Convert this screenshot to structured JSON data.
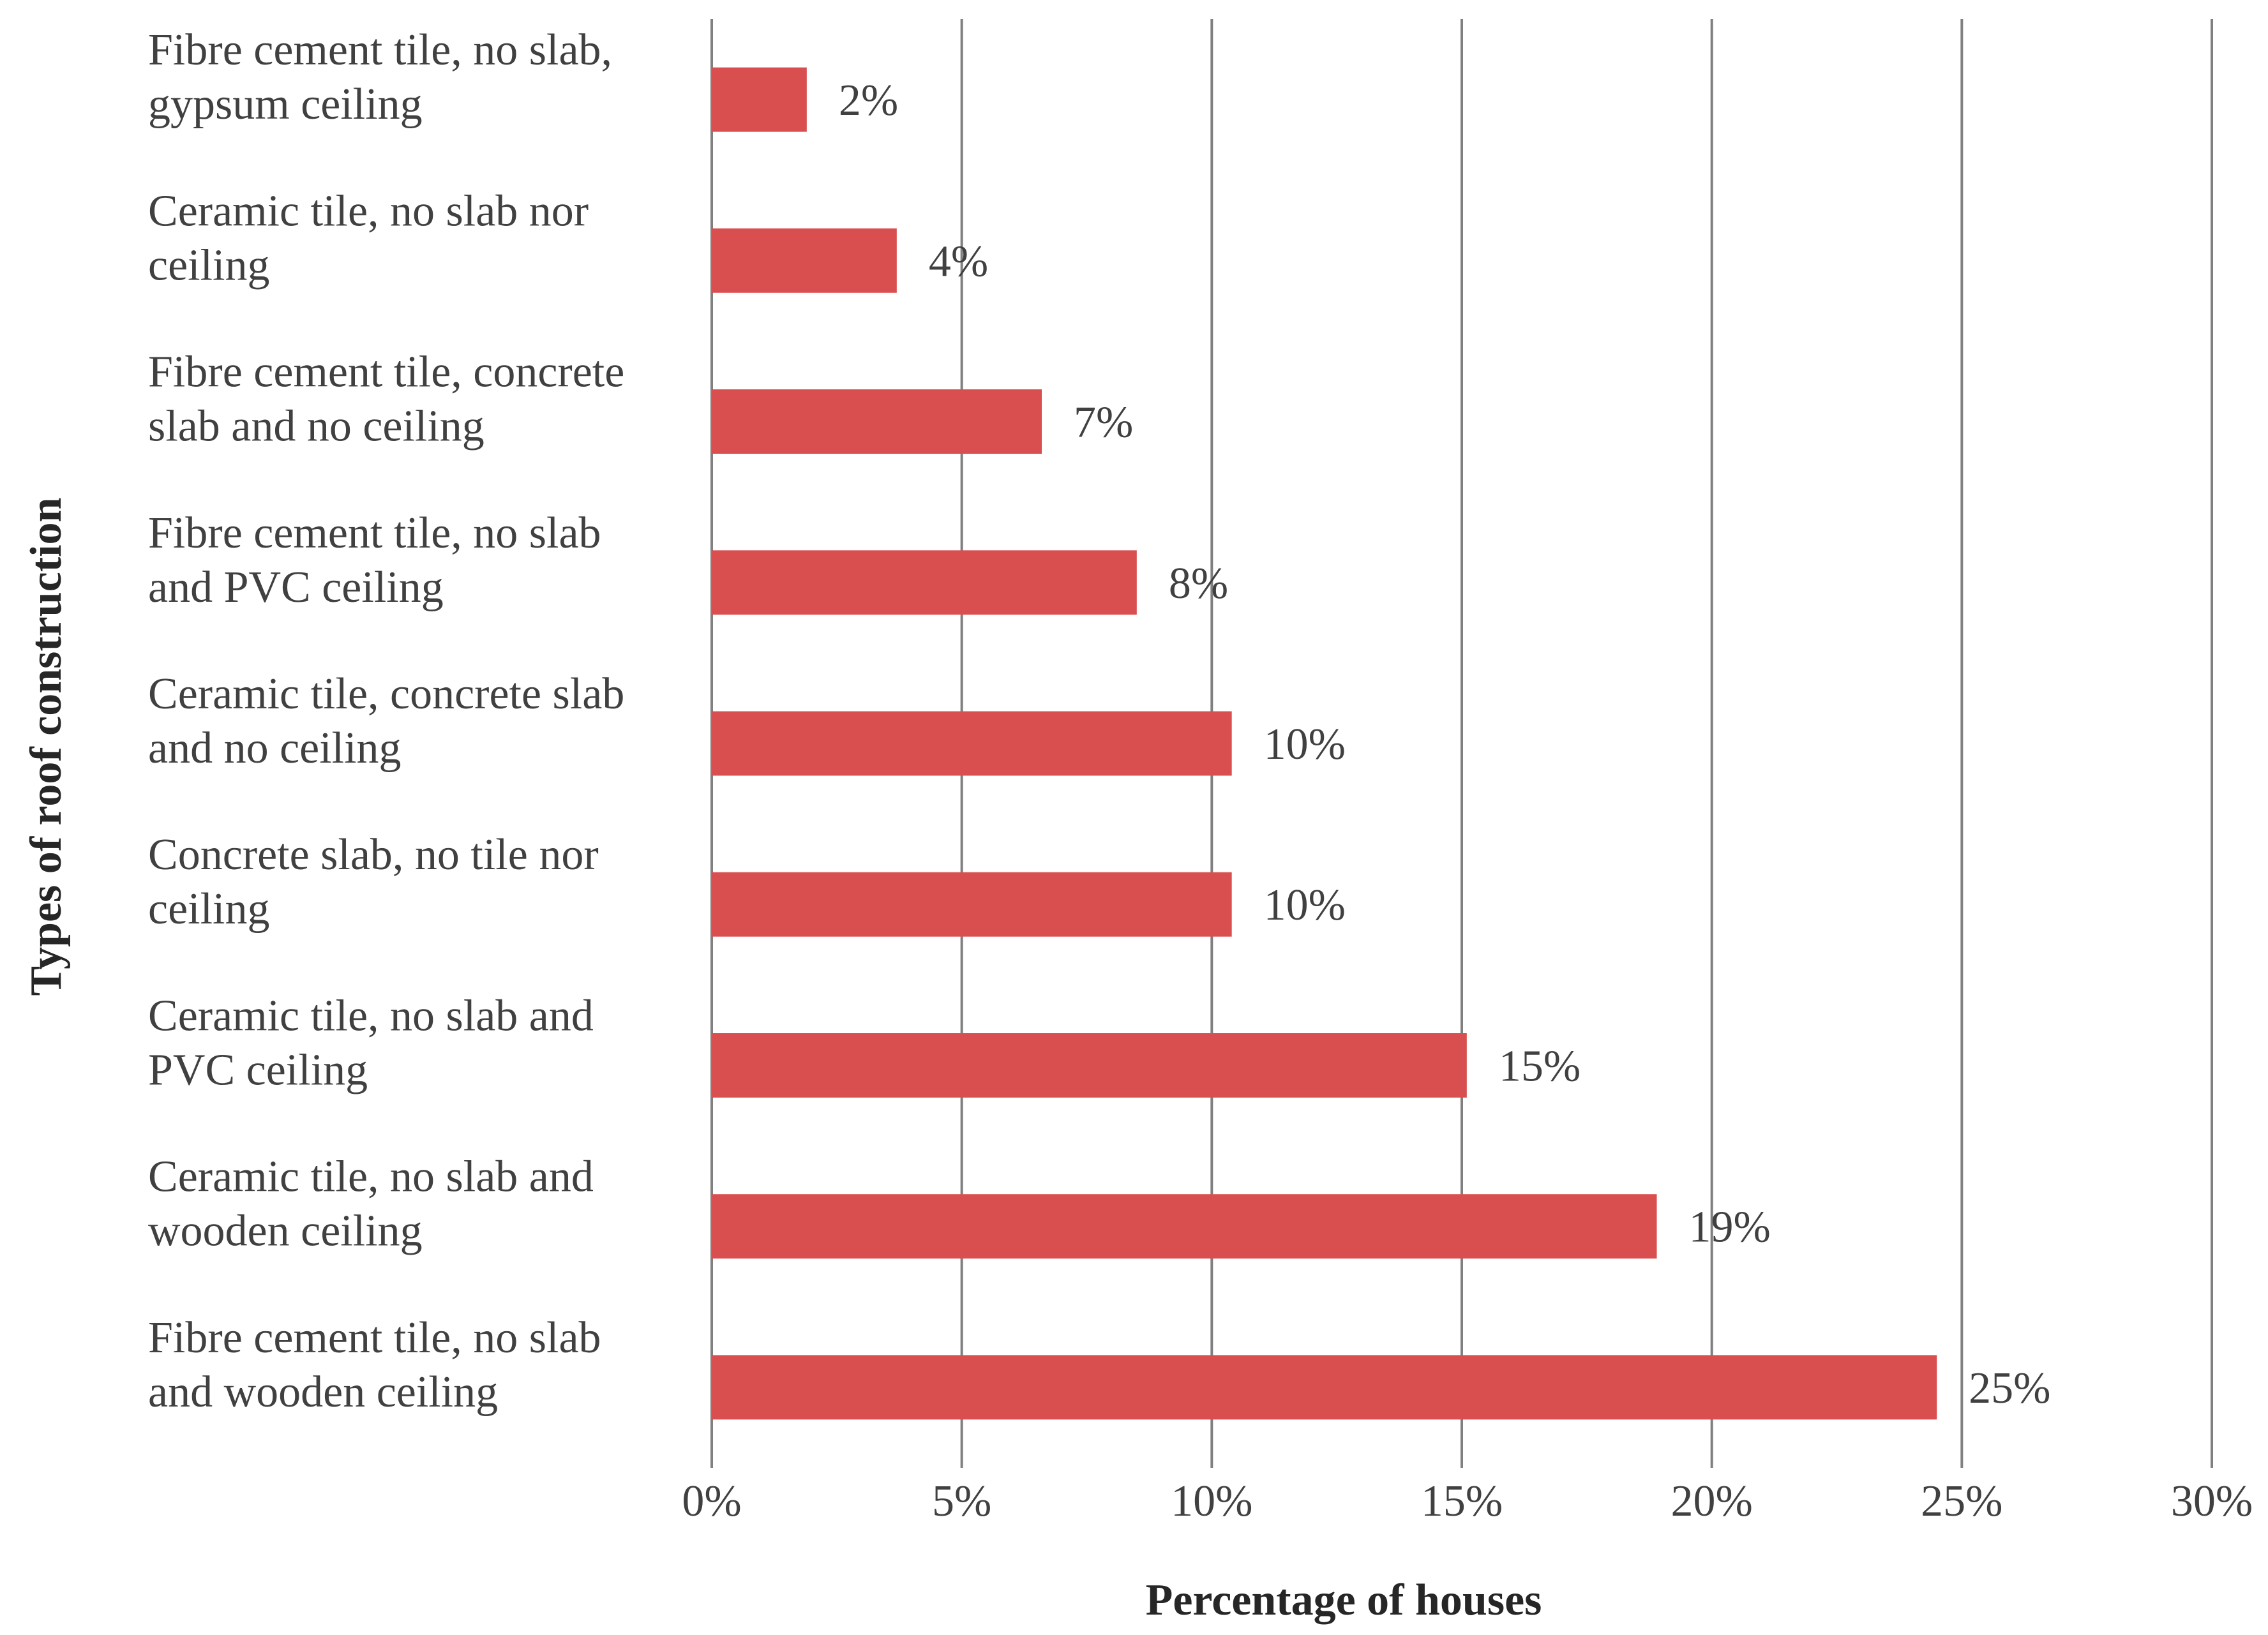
{
  "chart_data": {
    "type": "bar",
    "orientation": "horizontal",
    "xlabel": "Percentage of houses",
    "ylabel": "Types of roof construction",
    "xlim": [
      0,
      30
    ],
    "x_ticks": [
      "0%",
      "5%",
      "10%",
      "15%",
      "20%",
      "25%",
      "30%"
    ],
    "grid": true,
    "bar_color": "#d94f4f",
    "categories": [
      [
        "Fibre cement tile, no slab,",
        "gypsum ceiling"
      ],
      [
        "Ceramic tile, no slab nor",
        "ceiling"
      ],
      [
        "Fibre cement tile, concrete",
        "slab and no ceiling"
      ],
      [
        "Fibre cement tile, no slab",
        "and PVC ceiling"
      ],
      [
        "Ceramic tile, concrete slab",
        "and no ceiling"
      ],
      [
        "Concrete slab, no tile nor",
        "ceiling"
      ],
      [
        "Ceramic tile, no slab and",
        "PVC ceiling"
      ],
      [
        "Ceramic tile, no slab and",
        "wooden ceiling"
      ],
      [
        "Fibre cement tile, no slab",
        "and wooden ceiling"
      ]
    ],
    "values": [
      1.9,
      3.7,
      6.6,
      8.5,
      10.4,
      10.4,
      15.1,
      18.9,
      24.5
    ],
    "data_labels": [
      "2%",
      "4%",
      "7%",
      "8%",
      "10%",
      "10%",
      "15%",
      "19%",
      "25%"
    ]
  }
}
